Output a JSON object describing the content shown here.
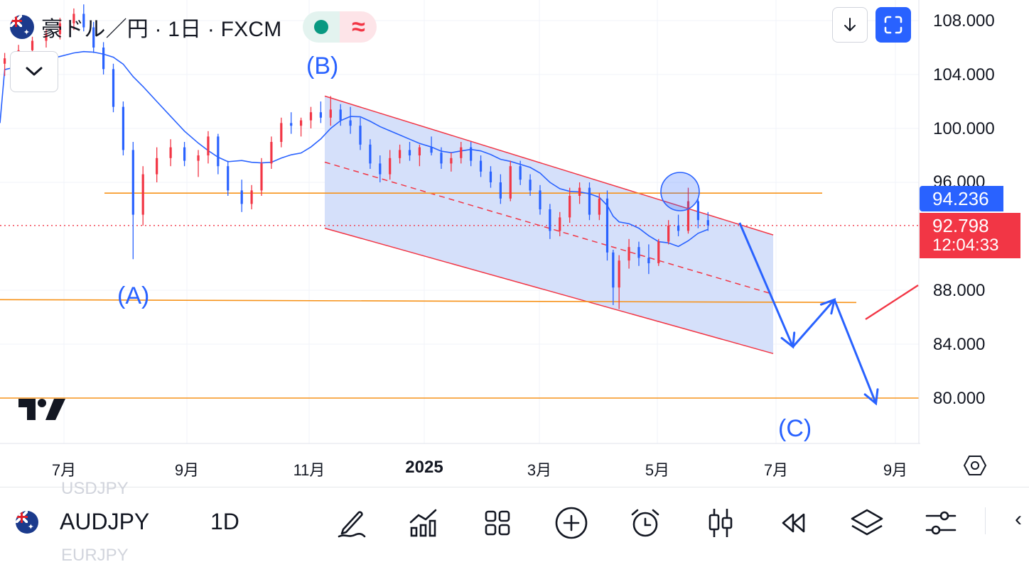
{
  "header": {
    "title": "豪ドル／円 · 1日 · FXCM",
    "delay_symbol": "≈"
  },
  "price_axis": {
    "labels": [
      "108.000",
      "104.000",
      "100.000",
      "96.000",
      "88.000",
      "84.000",
      "80.000"
    ],
    "current_price_tag": "94.236",
    "last_price_tag": "92.798",
    "countdown": "12:04:33"
  },
  "time_axis": {
    "labels": [
      "7月",
      "9月",
      "11月",
      "2025",
      "3月",
      "5月",
      "7月",
      "9月"
    ]
  },
  "annotations": {
    "wave_a": "(A)",
    "wave_b": "(B)",
    "wave_c": "(C)"
  },
  "colors": {
    "up": "#f23645",
    "down": "#2962ff",
    "ma_line": "#2962ff",
    "horizontal_level": "#f7931a",
    "channel": "#f23645",
    "channel_fill": "#d3defa",
    "accent": "#2962ff"
  },
  "toolbar": {
    "symbol": "AUDJPY",
    "interval": "1D",
    "ghost_prev": "USDJPY",
    "ghost_next": "EURJPY",
    "tools": [
      "pen-icon",
      "indicators-icon",
      "layout-grid-icon",
      "add-icon",
      "alarm-clock-icon",
      "candles-icon",
      "replay-icon",
      "layers-icon",
      "settings-sliders-icon"
    ]
  },
  "chart_data": {
    "type": "candlestick",
    "symbol": "AUDJPY",
    "interval": "1D",
    "exchange": "FXCM",
    "y_range": [
      77.6,
      109.2
    ],
    "y_ticks": [
      108,
      104,
      100,
      96,
      88,
      84,
      80
    ],
    "current_price": 94.236,
    "last_price": 92.798,
    "horizontal_levels": [
      95.2,
      87.3,
      80.0
    ],
    "channel": {
      "upper": [
        [
          "2024-11-10",
          102.4
        ],
        [
          "2025-06-25",
          92.1
        ]
      ],
      "lower": [
        [
          "2024-11-10",
          92.6
        ],
        [
          "2025-06-25",
          83.3
        ]
      ],
      "mid": [
        [
          "2024-11-10",
          97.5
        ],
        [
          "2025-06-25",
          87.7
        ]
      ]
    },
    "wave_points": [
      {
        "label": "(A)",
        "date": "2024-08-05",
        "price": 87.5
      },
      {
        "label": "(B)",
        "date": "2024-11-12",
        "price": 104.0
      },
      {
        "label": "(C)",
        "date": "2025-07-25",
        "price": 78.8
      }
    ],
    "projection_path": [
      [
        "2025-06-08",
        93.0
      ],
      [
        "2025-07-05",
        83.8
      ],
      [
        "2025-07-26",
        87.3
      ],
      [
        "2025-08-16",
        79.6
      ]
    ],
    "candles": [
      [
        "2024-06-01",
        104.8,
        105.6,
        103.9,
        105.2
      ],
      [
        "2024-06-08",
        105.2,
        106.2,
        104.6,
        105.8
      ],
      [
        "2024-06-15",
        105.8,
        106.8,
        105.2,
        106.5
      ],
      [
        "2024-06-22",
        106.5,
        107.4,
        106.0,
        107.0
      ],
      [
        "2024-06-29",
        107.0,
        108.2,
        106.6,
        107.8
      ],
      [
        "2024-07-06",
        107.8,
        108.9,
        107.3,
        108.5
      ],
      [
        "2024-07-11",
        108.5,
        109.2,
        107.2,
        107.5
      ],
      [
        "2024-07-16",
        107.5,
        107.9,
        105.6,
        106.0
      ],
      [
        "2024-07-21",
        106.0,
        106.4,
        104.0,
        104.4
      ],
      [
        "2024-07-26",
        104.4,
        104.8,
        101.2,
        101.6
      ],
      [
        "2024-07-31",
        101.6,
        102.0,
        98.0,
        98.4
      ],
      [
        "2024-08-05",
        98.4,
        99.0,
        90.3,
        93.6
      ],
      [
        "2024-08-10",
        93.6,
        97.2,
        92.8,
        96.6
      ],
      [
        "2024-08-17",
        96.6,
        98.6,
        96.0,
        97.8
      ],
      [
        "2024-08-24",
        97.8,
        99.2,
        97.2,
        98.6
      ],
      [
        "2024-08-31",
        98.6,
        99.0,
        97.2,
        97.6
      ],
      [
        "2024-09-07",
        97.6,
        98.4,
        96.4,
        98.0
      ],
      [
        "2024-09-12",
        98.0,
        99.8,
        97.4,
        99.4
      ],
      [
        "2024-09-17",
        99.4,
        99.6,
        96.6,
        97.2
      ],
      [
        "2024-09-22",
        97.2,
        97.6,
        95.0,
        95.4
      ],
      [
        "2024-09-29",
        95.4,
        96.2,
        93.8,
        94.4
      ],
      [
        "2024-10-04",
        94.4,
        95.8,
        94.0,
        95.4
      ],
      [
        "2024-10-09",
        95.4,
        97.8,
        95.0,
        97.4
      ],
      [
        "2024-10-14",
        97.4,
        99.4,
        97.0,
        99.0
      ],
      [
        "2024-10-19",
        99.0,
        100.8,
        98.6,
        100.4
      ],
      [
        "2024-10-24",
        100.4,
        101.2,
        99.6,
        100.2
      ],
      [
        "2024-10-29",
        100.2,
        100.8,
        99.4,
        100.6
      ],
      [
        "2024-11-03",
        100.6,
        101.6,
        100.0,
        101.2
      ],
      [
        "2024-11-08",
        101.2,
        102.0,
        100.4,
        100.8
      ],
      [
        "2024-11-13",
        100.8,
        102.4,
        100.2,
        101.4
      ],
      [
        "2024-11-18",
        101.4,
        101.8,
        100.2,
        100.6
      ],
      [
        "2024-11-23",
        100.6,
        101.6,
        99.6,
        100.2
      ],
      [
        "2024-11-28",
        100.2,
        100.8,
        98.4,
        98.8
      ],
      [
        "2024-12-03",
        98.8,
        99.2,
        97.0,
        97.4
      ],
      [
        "2024-12-08",
        97.4,
        98.0,
        96.0,
        96.6
      ],
      [
        "2024-12-13",
        96.6,
        98.4,
        96.2,
        97.8
      ],
      [
        "2024-12-18",
        97.8,
        98.8,
        97.4,
        98.4
      ],
      [
        "2024-12-23",
        98.4,
        99.0,
        97.6,
        98.0
      ],
      [
        "2024-12-28",
        98.0,
        98.8,
        97.2,
        98.6
      ],
      [
        "2025-01-03",
        98.6,
        99.4,
        98.0,
        98.2
      ],
      [
        "2025-01-08",
        98.2,
        98.6,
        97.0,
        97.4
      ],
      [
        "2025-01-13",
        97.4,
        98.2,
        96.8,
        97.8
      ],
      [
        "2025-01-18",
        97.8,
        99.0,
        97.4,
        98.6
      ],
      [
        "2025-01-23",
        98.6,
        99.0,
        97.2,
        97.6
      ],
      [
        "2025-01-28",
        97.6,
        98.0,
        96.4,
        96.8
      ],
      [
        "2025-02-02",
        96.8,
        97.2,
        95.6,
        96.0
      ],
      [
        "2025-02-07",
        96.0,
        96.6,
        94.4,
        94.8
      ],
      [
        "2025-02-12",
        94.8,
        97.6,
        94.6,
        97.2
      ],
      [
        "2025-02-17",
        97.2,
        97.6,
        95.8,
        96.2
      ],
      [
        "2025-02-22",
        96.2,
        96.6,
        95.0,
        95.4
      ],
      [
        "2025-02-27",
        95.4,
        95.8,
        93.6,
        94.0
      ],
      [
        "2025-03-04",
        94.0,
        94.4,
        91.8,
        92.4
      ],
      [
        "2025-03-09",
        92.4,
        93.8,
        92.0,
        93.4
      ],
      [
        "2025-03-14",
        93.4,
        95.6,
        93.0,
        95.0
      ],
      [
        "2025-03-19",
        95.0,
        96.0,
        94.4,
        95.6
      ],
      [
        "2025-03-24",
        95.6,
        96.0,
        93.2,
        93.6
      ],
      [
        "2025-03-29",
        93.6,
        95.2,
        93.2,
        94.8
      ],
      [
        "2025-04-02",
        94.8,
        95.4,
        90.2,
        90.8
      ],
      [
        "2025-04-05",
        90.8,
        91.0,
        86.9,
        88.2
      ],
      [
        "2025-04-08",
        88.2,
        90.6,
        86.6,
        90.2
      ],
      [
        "2025-04-13",
        90.2,
        91.8,
        89.6,
        91.2
      ],
      [
        "2025-04-18",
        91.2,
        91.6,
        89.8,
        90.4
      ],
      [
        "2025-04-23",
        90.4,
        91.4,
        89.2,
        90.0
      ],
      [
        "2025-04-28",
        90.0,
        91.8,
        89.8,
        91.6
      ],
      [
        "2025-05-03",
        91.6,
        93.2,
        91.4,
        92.8
      ],
      [
        "2025-05-08",
        92.8,
        93.6,
        92.0,
        92.4
      ],
      [
        "2025-05-13",
        92.4,
        95.6,
        92.2,
        94.6
      ],
      [
        "2025-05-18",
        94.6,
        94.8,
        92.6,
        93.2
      ],
      [
        "2025-05-23",
        93.2,
        93.8,
        92.4,
        92.8
      ]
    ]
  }
}
